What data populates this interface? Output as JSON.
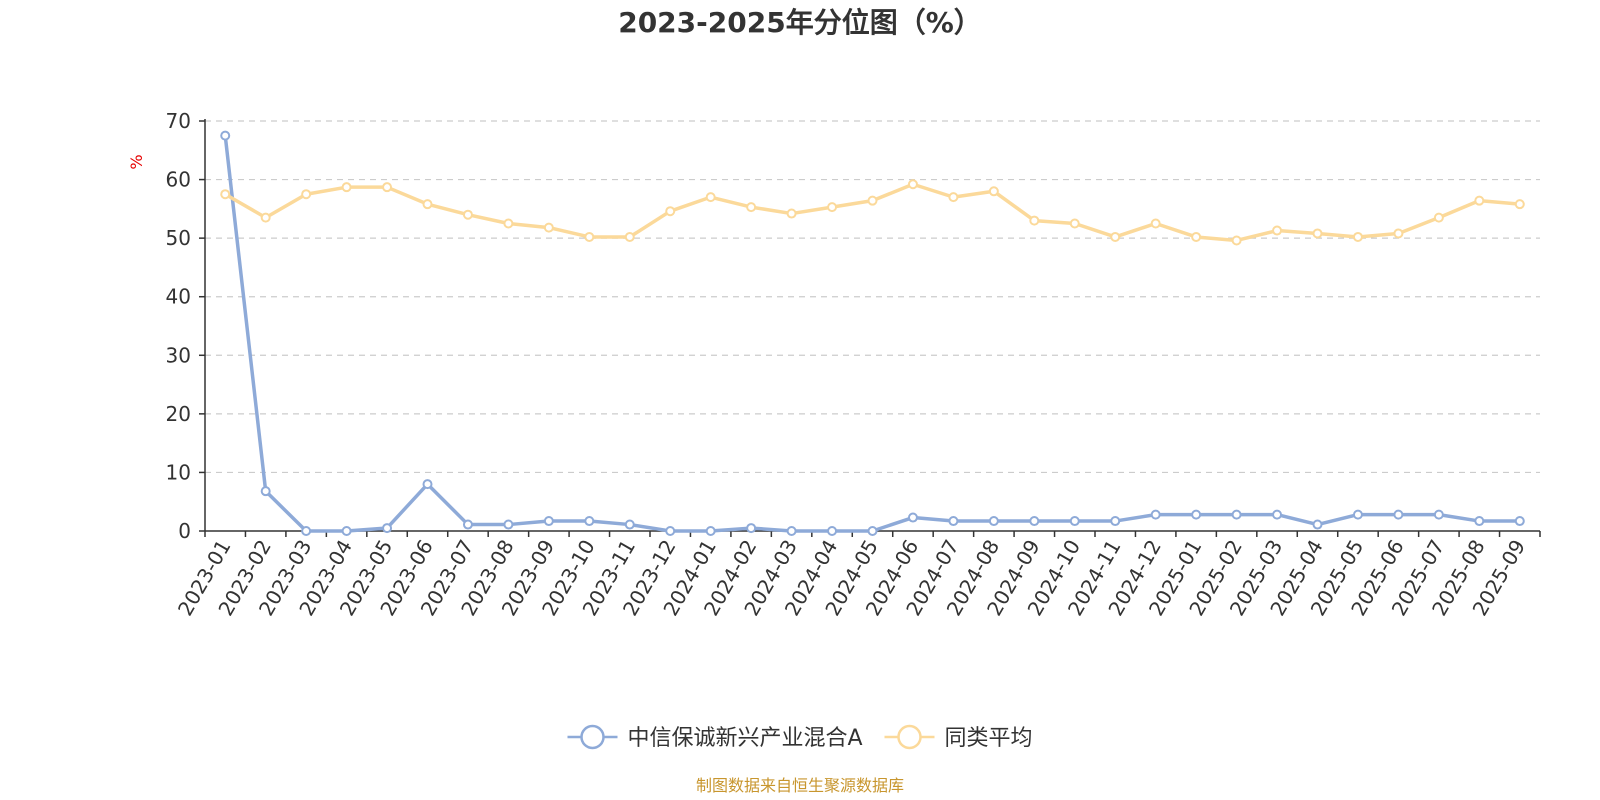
{
  "chart_data": {
    "type": "line",
    "title": "2023-2025年分位图（%）",
    "ylabel": "%",
    "xlabel": "",
    "ylim": [
      0,
      70
    ],
    "yticks": [
      0,
      10,
      20,
      30,
      40,
      50,
      60,
      70
    ],
    "grid": true,
    "legend_position": "bottom",
    "categories": [
      "2023-01",
      "2023-02",
      "2023-03",
      "2023-04",
      "2023-05",
      "2023-06",
      "2023-07",
      "2023-08",
      "2023-09",
      "2023-10",
      "2023-11",
      "2023-12",
      "2024-01",
      "2024-02",
      "2024-03",
      "2024-04",
      "2024-05",
      "2024-06",
      "2024-07",
      "2024-08",
      "2024-09",
      "2024-10",
      "2024-11",
      "2024-12",
      "2025-01",
      "2025-02",
      "2025-03",
      "2025-04",
      "2025-05",
      "2025-06",
      "2025-07",
      "2025-08",
      "2025-09"
    ],
    "series": [
      {
        "name": "中信保诚新兴产业混合A",
        "color": "#8eaad8",
        "values": [
          67.5,
          6.8,
          0,
          0,
          0.5,
          8,
          1.1,
          1.1,
          1.7,
          1.7,
          1.1,
          0,
          0,
          0.5,
          0,
          0,
          0,
          2.3,
          1.7,
          1.7,
          1.7,
          1.7,
          1.7,
          2.8,
          2.8,
          2.8,
          2.8,
          1.1,
          2.8,
          2.8,
          2.8,
          1.7,
          1.7
        ]
      },
      {
        "name": "同类平均",
        "color": "#fbd99a",
        "values": [
          57.5,
          53.5,
          57.5,
          58.7,
          58.7,
          55.8,
          54,
          52.5,
          51.8,
          50.2,
          50.2,
          54.6,
          57,
          55.3,
          54.2,
          55.3,
          56.4,
          59.2,
          57,
          58,
          53,
          52.5,
          50.2,
          52.5,
          50.2,
          49.6,
          51.3,
          50.8,
          50.2,
          50.8,
          53.5,
          56.4,
          55.8
        ]
      }
    ]
  },
  "footer": {
    "source": "制图数据来自恒生聚源数据库"
  }
}
